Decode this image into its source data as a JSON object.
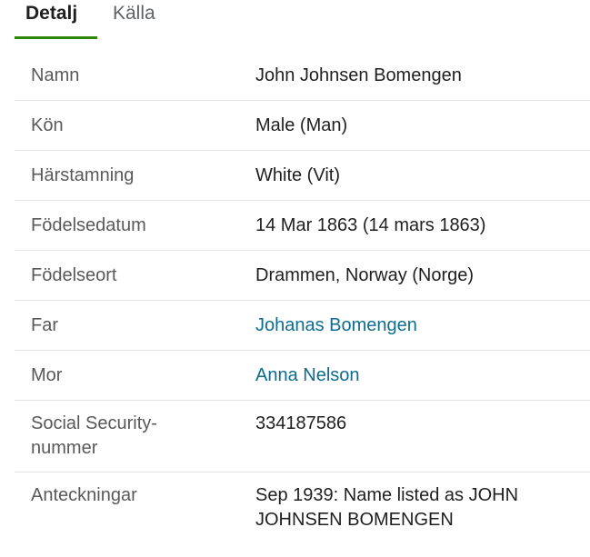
{
  "tabs": [
    {
      "label": "Detalj",
      "active": true
    },
    {
      "label": "Källa",
      "active": false
    }
  ],
  "colors": {
    "active_tab_underline": "#2e8500",
    "link": "#0e6c8e"
  },
  "rows": [
    {
      "label": "Namn",
      "value": "John Johnsen Bomengen"
    },
    {
      "label": "Kön",
      "value": "Male (Man)"
    },
    {
      "label": "Härstamning",
      "value": "White (Vit)"
    },
    {
      "label": "Födelsedatum",
      "value": "14 Mar 1863 (14 mars 1863)"
    },
    {
      "label": "Födelseort",
      "value": "Drammen, Norway (Norge)"
    },
    {
      "label": "Far",
      "value": "Johanas Bomengen",
      "link": true
    },
    {
      "label": "Mor",
      "value": "Anna Nelson",
      "link": true
    },
    {
      "label": "Social Security-nummer",
      "value": "334187586"
    },
    {
      "label": "Anteckningar",
      "value": "Sep 1939: Name listed as JOHN JOHNSEN BOMENGEN"
    }
  ]
}
